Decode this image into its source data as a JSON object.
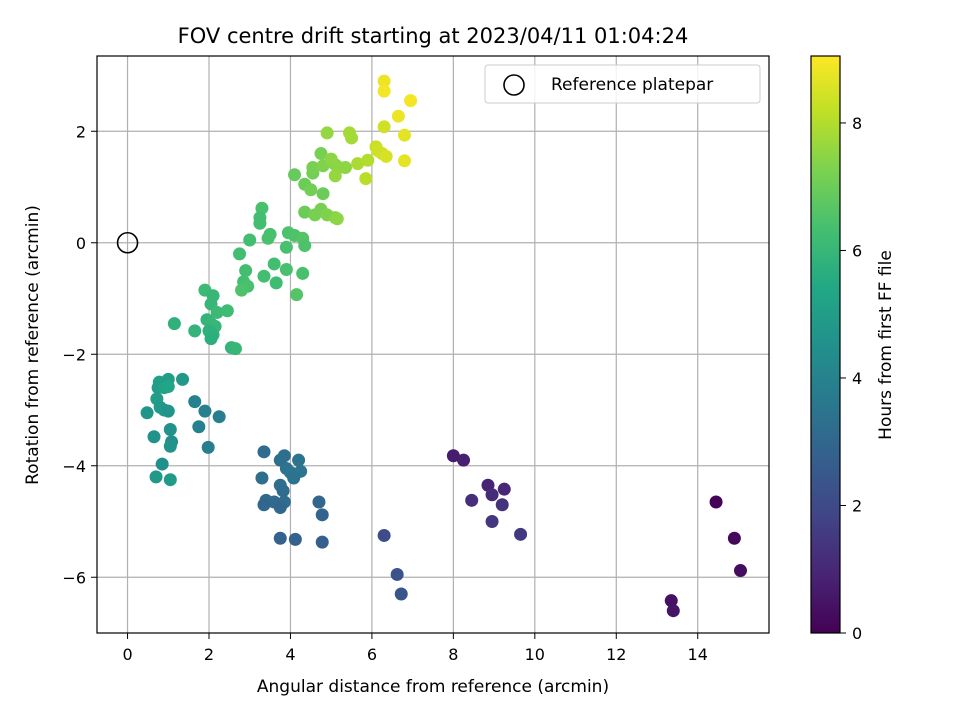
{
  "chart_data": {
    "type": "scatter",
    "title": "FOV centre drift starting at 2023/04/11 01:04:24",
    "xlabel": "Angular distance from reference (arcmin)",
    "ylabel": "Rotation from reference (arcmin)",
    "xlim": [
      -0.75,
      15.75
    ],
    "ylim": [
      -7.0,
      3.35
    ],
    "xticks": [
      0,
      2,
      4,
      6,
      8,
      10,
      12,
      14
    ],
    "yticks": [
      -6,
      -4,
      -2,
      0,
      2
    ],
    "xtick_labels": [
      "0",
      "2",
      "4",
      "6",
      "8",
      "10",
      "12",
      "14"
    ],
    "ytick_labels": [
      "−6",
      "−4",
      "−2",
      "0",
      "2"
    ],
    "grid": true,
    "colormap": "viridis",
    "colorbar": {
      "label": "Hours from first FF file",
      "range": [
        0,
        9.05
      ],
      "ticks": [
        0,
        2,
        4,
        6,
        8
      ],
      "tick_labels": [
        "0",
        "2",
        "4",
        "6",
        "8"
      ]
    },
    "legend": {
      "position": "top-right",
      "entries": [
        "Reference platepar"
      ]
    },
    "reference_point": {
      "x": 0,
      "y": 0
    },
    "points": [
      {
        "x": 14.45,
        "y": -4.65,
        "h": 0.1
      },
      {
        "x": 14.9,
        "y": -5.3,
        "h": 0.2
      },
      {
        "x": 15.05,
        "y": -5.88,
        "h": 0.3
      },
      {
        "x": 13.35,
        "y": -6.42,
        "h": 0.4
      },
      {
        "x": 13.4,
        "y": -6.6,
        "h": 0.5
      },
      {
        "x": 8.0,
        "y": -3.82,
        "h": 0.7
      },
      {
        "x": 8.25,
        "y": -3.9,
        "h": 0.8
      },
      {
        "x": 8.85,
        "y": -4.35,
        "h": 0.9
      },
      {
        "x": 9.25,
        "y": -4.42,
        "h": 1.0
      },
      {
        "x": 8.95,
        "y": -4.52,
        "h": 1.1
      },
      {
        "x": 8.45,
        "y": -4.62,
        "h": 1.2
      },
      {
        "x": 9.2,
        "y": -4.7,
        "h": 1.3
      },
      {
        "x": 8.95,
        "y": -5.0,
        "h": 1.4
      },
      {
        "x": 9.65,
        "y": -5.23,
        "h": 1.5
      },
      {
        "x": 6.3,
        "y": -5.25,
        "h": 2.1
      },
      {
        "x": 6.62,
        "y": -5.95,
        "h": 2.3
      },
      {
        "x": 6.72,
        "y": -6.3,
        "h": 2.4
      },
      {
        "x": 3.35,
        "y": -3.75,
        "h": 3.2
      },
      {
        "x": 3.75,
        "y": -3.9,
        "h": 3.3
      },
      {
        "x": 3.85,
        "y": -3.82,
        "h": 3.3
      },
      {
        "x": 4.2,
        "y": -3.9,
        "h": 3.4
      },
      {
        "x": 3.9,
        "y": -4.05,
        "h": 3.4
      },
      {
        "x": 4.0,
        "y": -4.12,
        "h": 3.5
      },
      {
        "x": 4.25,
        "y": -4.1,
        "h": 3.5
      },
      {
        "x": 3.3,
        "y": -4.22,
        "h": 3.3
      },
      {
        "x": 4.08,
        "y": -4.22,
        "h": 3.4
      },
      {
        "x": 3.75,
        "y": -4.35,
        "h": 3.3
      },
      {
        "x": 3.82,
        "y": -4.45,
        "h": 3.2
      },
      {
        "x": 3.4,
        "y": -4.62,
        "h": 3.1
      },
      {
        "x": 3.6,
        "y": -4.65,
        "h": 3.1
      },
      {
        "x": 3.85,
        "y": -4.65,
        "h": 3.2
      },
      {
        "x": 4.7,
        "y": -4.65,
        "h": 3.0
      },
      {
        "x": 3.35,
        "y": -4.7,
        "h": 3.0
      },
      {
        "x": 3.75,
        "y": -4.75,
        "h": 3.0
      },
      {
        "x": 4.78,
        "y": -4.88,
        "h": 2.9
      },
      {
        "x": 3.75,
        "y": -5.3,
        "h": 2.8
      },
      {
        "x": 4.12,
        "y": -5.32,
        "h": 2.8
      },
      {
        "x": 4.78,
        "y": -5.37,
        "h": 2.7
      },
      {
        "x": 1.65,
        "y": -2.85,
        "h": 4.0
      },
      {
        "x": 1.9,
        "y": -3.02,
        "h": 3.9
      },
      {
        "x": 2.25,
        "y": -3.12,
        "h": 3.8
      },
      {
        "x": 1.75,
        "y": -3.3,
        "h": 3.9
      },
      {
        "x": 1.98,
        "y": -3.67,
        "h": 3.8
      },
      {
        "x": 0.78,
        "y": -2.5,
        "h": 5.1
      },
      {
        "x": 1.0,
        "y": -2.45,
        "h": 5.0
      },
      {
        "x": 1.35,
        "y": -2.45,
        "h": 4.8
      },
      {
        "x": 0.75,
        "y": -2.6,
        "h": 5.0
      },
      {
        "x": 0.9,
        "y": -2.6,
        "h": 5.2
      },
      {
        "x": 1.0,
        "y": -2.58,
        "h": 5.3
      },
      {
        "x": 0.72,
        "y": -2.8,
        "h": 5.0
      },
      {
        "x": 0.8,
        "y": -2.95,
        "h": 4.9
      },
      {
        "x": 0.9,
        "y": -3.0,
        "h": 4.8
      },
      {
        "x": 1.0,
        "y": -3.02,
        "h": 4.7
      },
      {
        "x": 0.48,
        "y": -3.05,
        "h": 4.7
      },
      {
        "x": 1.05,
        "y": -3.35,
        "h": 4.6
      },
      {
        "x": 0.65,
        "y": -3.48,
        "h": 4.6
      },
      {
        "x": 1.08,
        "y": -3.57,
        "h": 4.5
      },
      {
        "x": 1.05,
        "y": -3.65,
        "h": 4.6
      },
      {
        "x": 0.85,
        "y": -3.97,
        "h": 4.5
      },
      {
        "x": 0.7,
        "y": -4.2,
        "h": 4.8
      },
      {
        "x": 1.05,
        "y": -4.25,
        "h": 4.9
      },
      {
        "x": 1.9,
        "y": -0.85,
        "h": 6.1
      },
      {
        "x": 2.1,
        "y": -0.95,
        "h": 6.0
      },
      {
        "x": 2.05,
        "y": -1.1,
        "h": 6.0
      },
      {
        "x": 2.2,
        "y": -1.25,
        "h": 6.1
      },
      {
        "x": 2.45,
        "y": -1.22,
        "h": 6.2
      },
      {
        "x": 1.95,
        "y": -1.38,
        "h": 5.9
      },
      {
        "x": 2.05,
        "y": -1.45,
        "h": 6.0
      },
      {
        "x": 2.15,
        "y": -1.5,
        "h": 6.0
      },
      {
        "x": 1.15,
        "y": -1.45,
        "h": 5.8
      },
      {
        "x": 1.65,
        "y": -1.58,
        "h": 5.9
      },
      {
        "x": 2.0,
        "y": -1.58,
        "h": 5.8
      },
      {
        "x": 2.1,
        "y": -1.65,
        "h": 5.8
      },
      {
        "x": 2.05,
        "y": -1.72,
        "h": 5.7
      },
      {
        "x": 2.55,
        "y": -1.88,
        "h": 5.9
      },
      {
        "x": 2.65,
        "y": -1.9,
        "h": 6.0
      },
      {
        "x": 3.3,
        "y": 0.62,
        "h": 6.4
      },
      {
        "x": 3.25,
        "y": 0.45,
        "h": 6.3
      },
      {
        "x": 3.25,
        "y": 0.35,
        "h": 6.3
      },
      {
        "x": 3.5,
        "y": 0.15,
        "h": 6.4
      },
      {
        "x": 3.45,
        "y": 0.08,
        "h": 6.4
      },
      {
        "x": 3.95,
        "y": 0.18,
        "h": 6.5
      },
      {
        "x": 4.1,
        "y": 0.13,
        "h": 6.5
      },
      {
        "x": 4.3,
        "y": 0.08,
        "h": 6.6
      },
      {
        "x": 3.0,
        "y": 0.05,
        "h": 6.3
      },
      {
        "x": 4.35,
        "y": -0.05,
        "h": 6.5
      },
      {
        "x": 3.9,
        "y": -0.08,
        "h": 6.4
      },
      {
        "x": 2.75,
        "y": -0.2,
        "h": 6.3
      },
      {
        "x": 3.6,
        "y": -0.38,
        "h": 6.3
      },
      {
        "x": 3.9,
        "y": -0.48,
        "h": 6.4
      },
      {
        "x": 2.9,
        "y": -0.5,
        "h": 6.3
      },
      {
        "x": 4.3,
        "y": -0.55,
        "h": 6.4
      },
      {
        "x": 3.35,
        "y": -0.6,
        "h": 6.3
      },
      {
        "x": 2.85,
        "y": -0.7,
        "h": 6.3
      },
      {
        "x": 3.65,
        "y": -0.72,
        "h": 6.2
      },
      {
        "x": 2.95,
        "y": -0.78,
        "h": 6.4
      },
      {
        "x": 2.8,
        "y": -0.85,
        "h": 6.5
      },
      {
        "x": 4.15,
        "y": -0.93,
        "h": 6.6
      },
      {
        "x": 4.35,
        "y": 1.05,
        "h": 7.0
      },
      {
        "x": 4.5,
        "y": 0.95,
        "h": 7.1
      },
      {
        "x": 4.8,
        "y": 0.88,
        "h": 7.0
      },
      {
        "x": 4.35,
        "y": 0.55,
        "h": 7.0
      },
      {
        "x": 4.6,
        "y": 0.5,
        "h": 7.2
      },
      {
        "x": 4.75,
        "y": 0.6,
        "h": 7.2
      },
      {
        "x": 4.9,
        "y": 0.5,
        "h": 7.3
      },
      {
        "x": 5.1,
        "y": 0.45,
        "h": 7.4
      },
      {
        "x": 5.15,
        "y": 0.43,
        "h": 7.5
      },
      {
        "x": 4.1,
        "y": 1.22,
        "h": 6.9
      },
      {
        "x": 4.55,
        "y": 1.25,
        "h": 7.1
      },
      {
        "x": 4.55,
        "y": 1.35,
        "h": 7.2
      },
      {
        "x": 4.8,
        "y": 1.38,
        "h": 7.3
      },
      {
        "x": 4.75,
        "y": 1.6,
        "h": 7.2
      },
      {
        "x": 5.1,
        "y": 1.4,
        "h": 7.4
      },
      {
        "x": 5.2,
        "y": 1.35,
        "h": 7.5
      },
      {
        "x": 5.0,
        "y": 1.5,
        "h": 7.5
      },
      {
        "x": 5.35,
        "y": 1.35,
        "h": 7.5
      },
      {
        "x": 5.1,
        "y": 1.2,
        "h": 7.6
      },
      {
        "x": 4.9,
        "y": 1.97,
        "h": 7.6
      },
      {
        "x": 5.45,
        "y": 1.97,
        "h": 7.8
      },
      {
        "x": 5.5,
        "y": 1.88,
        "h": 7.8
      },
      {
        "x": 5.65,
        "y": 1.42,
        "h": 7.9
      },
      {
        "x": 5.9,
        "y": 1.48,
        "h": 8.0
      },
      {
        "x": 6.1,
        "y": 1.72,
        "h": 8.3
      },
      {
        "x": 6.15,
        "y": 1.65,
        "h": 8.4
      },
      {
        "x": 6.25,
        "y": 1.6,
        "h": 8.4
      },
      {
        "x": 6.35,
        "y": 1.55,
        "h": 8.5
      },
      {
        "x": 5.85,
        "y": 1.15,
        "h": 8.1
      },
      {
        "x": 6.3,
        "y": 2.08,
        "h": 8.4
      },
      {
        "x": 6.3,
        "y": 2.9,
        "h": 8.8
      },
      {
        "x": 6.3,
        "y": 2.72,
        "h": 8.9
      },
      {
        "x": 6.65,
        "y": 2.27,
        "h": 8.8
      },
      {
        "x": 6.95,
        "y": 2.55,
        "h": 8.9
      },
      {
        "x": 6.8,
        "y": 1.93,
        "h": 8.7
      },
      {
        "x": 6.8,
        "y": 1.47,
        "h": 8.7
      }
    ]
  }
}
